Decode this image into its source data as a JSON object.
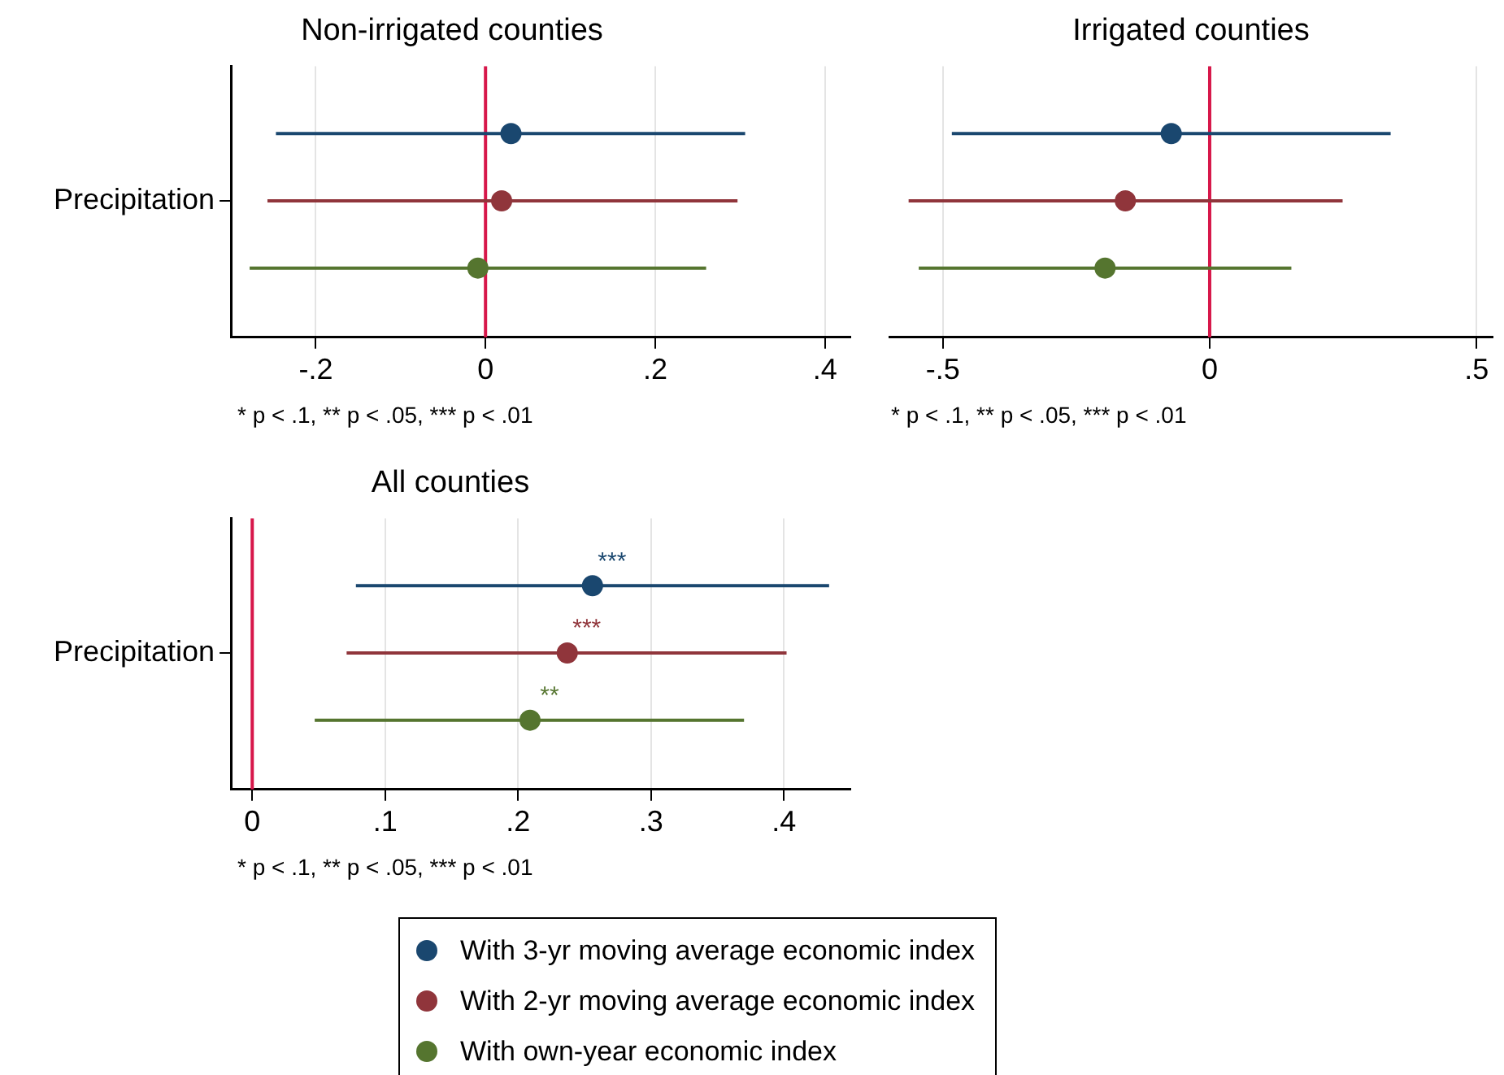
{
  "chart_data": [
    {
      "type": "scatter",
      "orientation": "horizontal",
      "title": "Non-irrigated counties",
      "categories": [
        "Precipitation"
      ],
      "series": [
        {
          "color": "#1a476f",
          "values": [
            0.03
          ],
          "errors": [
            [
              -0.247,
              0.306
            ]
          ]
        },
        {
          "color": "#90353b",
          "values": [
            0.019
          ],
          "errors": [
            [
              -0.257,
              0.297
            ]
          ]
        },
        {
          "color": "#55752f",
          "values": [
            -0.009
          ],
          "errors": [
            [
              -0.278,
              0.26
            ]
          ]
        }
      ],
      "xlim": [
        -0.3,
        0.43
      ],
      "xticks": [
        {
          "value": -0.2,
          "label": "-.2"
        },
        {
          "value": 0,
          "label": "0"
        },
        {
          "value": 0.2,
          "label": ".2"
        },
        {
          "value": 0.4,
          "label": ".4"
        }
      ],
      "ref_lines": [
        {
          "axis": "x",
          "value": 0,
          "color": "#d7174a"
        }
      ],
      "grid": "x",
      "marker": "circle",
      "legend": false,
      "annotations": [
        "* p < .1, ** p < .05, *** p < .01"
      ]
    },
    {
      "type": "scatter",
      "orientation": "horizontal",
      "title": "Irrigated counties",
      "categories": [
        null
      ],
      "series": [
        {
          "color": "#1a476f",
          "values": [
            -0.072
          ],
          "errors": [
            [
              -0.483,
              0.339
            ]
          ]
        },
        {
          "color": "#90353b",
          "values": [
            -0.158
          ],
          "errors": [
            [
              -0.564,
              0.249
            ]
          ]
        },
        {
          "color": "#55752f",
          "values": [
            -0.196
          ],
          "errors": [
            [
              -0.545,
              0.153
            ]
          ]
        }
      ],
      "xlim": [
        -0.6,
        0.53
      ],
      "xticks": [
        {
          "value": -0.5,
          "label": "-.5"
        },
        {
          "value": 0,
          "label": "0"
        },
        {
          "value": 0.5,
          "label": ".5"
        }
      ],
      "ref_lines": [
        {
          "axis": "x",
          "value": 0,
          "color": "#d7174a"
        }
      ],
      "grid": "x",
      "marker": "circle",
      "legend": false,
      "tick_labels": "x",
      "annotations": [
        "* p < .1, ** p < .05, *** p < .01"
      ]
    },
    {
      "type": "scatter",
      "orientation": "horizontal",
      "title": "All counties",
      "categories": [
        "Precipitation"
      ],
      "series": [
        {
          "name": "With 3-yr moving average economic index",
          "color": "#1a476f",
          "values": [
            0.256
          ],
          "errors": [
            [
              0.078,
              0.434
            ]
          ],
          "value_labels": [
            "***"
          ]
        },
        {
          "name": "With 2-yr moving average economic index",
          "color": "#90353b",
          "values": [
            0.237
          ],
          "errors": [
            [
              0.071,
              0.402
            ]
          ],
          "value_labels": [
            "***"
          ]
        },
        {
          "name": "With own-year economic index",
          "color": "#55752f",
          "values": [
            0.209
          ],
          "errors": [
            [
              0.047,
              0.37
            ]
          ],
          "value_labels": [
            "**"
          ]
        }
      ],
      "xlim": [
        -0.016,
        0.45
      ],
      "xticks": [
        {
          "value": 0,
          "label": "0"
        },
        {
          "value": 0.1,
          "label": ".1"
        },
        {
          "value": 0.2,
          "label": ".2"
        },
        {
          "value": 0.3,
          "label": ".3"
        },
        {
          "value": 0.4,
          "label": ".4"
        }
      ],
      "ref_lines": [
        {
          "axis": "x",
          "value": 0,
          "color": "#d7174a"
        }
      ],
      "grid": "x",
      "marker": "circle",
      "legend": "bottom",
      "annotations": [
        "* p < .1, ** p < .05, *** p < .01"
      ]
    }
  ]
}
